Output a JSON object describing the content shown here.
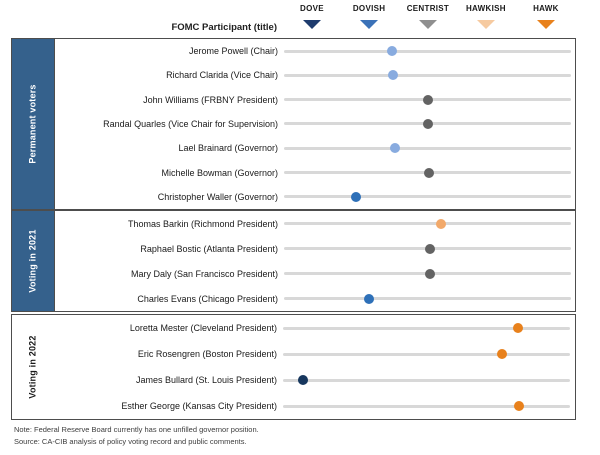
{
  "colors": {
    "sidebar_fill": "#35618c",
    "box_border": "#4d4d4d",
    "track": "#d8d8d8"
  },
  "chart_data": {
    "type": "scatter",
    "column_header": "FOMC Participant (title)",
    "scale": {
      "labels": [
        "DOVE",
        "DOVISH",
        "CENTRIST",
        "HAWKISH",
        "HAWK"
      ],
      "colors": [
        "#1e3c6e",
        "#3b72b8",
        "#8f8f8f",
        "#f6caa0",
        "#e8811c"
      ],
      "positions_pct": [
        10.1,
        30.0,
        50.5,
        70.7,
        91.6
      ],
      "stance_values": [
        1,
        2,
        3,
        4,
        5
      ]
    },
    "sections": [
      {
        "label": "Permanent voters",
        "filled": true,
        "rows": [
          {
            "name": "Jerome Powell (Chair)",
            "stance": 2.4,
            "pos_pct": 37.6,
            "color": "#88abdf"
          },
          {
            "name": "Richard Clarida (Vice Chair)",
            "stance": 2.4,
            "pos_pct": 38.0,
            "color": "#88abdf"
          },
          {
            "name": "John Williams (FRBNY President)",
            "stance": 3.0,
            "pos_pct": 50.2,
            "color": "#636363"
          },
          {
            "name": "Randal Quarles (Vice Chair for Supervision)",
            "stance": 3.0,
            "pos_pct": 50.2,
            "color": "#636363"
          },
          {
            "name": "Lael Brainard (Governor)",
            "stance": 2.4,
            "pos_pct": 38.7,
            "color": "#88abdf"
          },
          {
            "name": "Michelle Bowman (Governor)",
            "stance": 3.0,
            "pos_pct": 50.5,
            "color": "#636363"
          },
          {
            "name": "Christopher Waller (Governor)",
            "stance": 1.75,
            "pos_pct": 25.1,
            "color": "#2e70b8"
          }
        ]
      },
      {
        "label": "Voting in 2021",
        "filled": true,
        "rows": [
          {
            "name": "Thomas Barkin (Richmond President)",
            "stance": 3.2,
            "pos_pct": 54.7,
            "color": "#f2a96a"
          },
          {
            "name": "Raphael Bostic (Atlanta President)",
            "stance": 3.0,
            "pos_pct": 50.9,
            "color": "#636363"
          },
          {
            "name": "Mary Daly (San Francisco President)",
            "stance": 3.0,
            "pos_pct": 50.9,
            "color": "#636363"
          },
          {
            "name": "Charles Evans (Chicago President)",
            "stance": 2.0,
            "pos_pct": 29.6,
            "color": "#2e70b8"
          }
        ]
      },
      {
        "label": "Voting in 2022",
        "filled": false,
        "rows": [
          {
            "name": "Loretta Mester (Cleveland President)",
            "stance": 4.5,
            "pos_pct": 81.9,
            "color": "#e8811c"
          },
          {
            "name": "Eric Rosengren (Boston President)",
            "stance": 4.3,
            "pos_pct": 76.3,
            "color": "#e8811c"
          },
          {
            "name": "James Bullard (St. Louis President)",
            "stance": 0.85,
            "pos_pct": 7.0,
            "color": "#17375e"
          },
          {
            "name": "Esther George (Kansas City President)",
            "stance": 4.5,
            "pos_pct": 82.2,
            "color": "#e8811c"
          }
        ]
      }
    ]
  },
  "footer": {
    "note": "Note: Federal Reserve Board currently has one unfilled governor position.",
    "source": "Source: CA-CIB analysis of policy voting record and public comments."
  }
}
